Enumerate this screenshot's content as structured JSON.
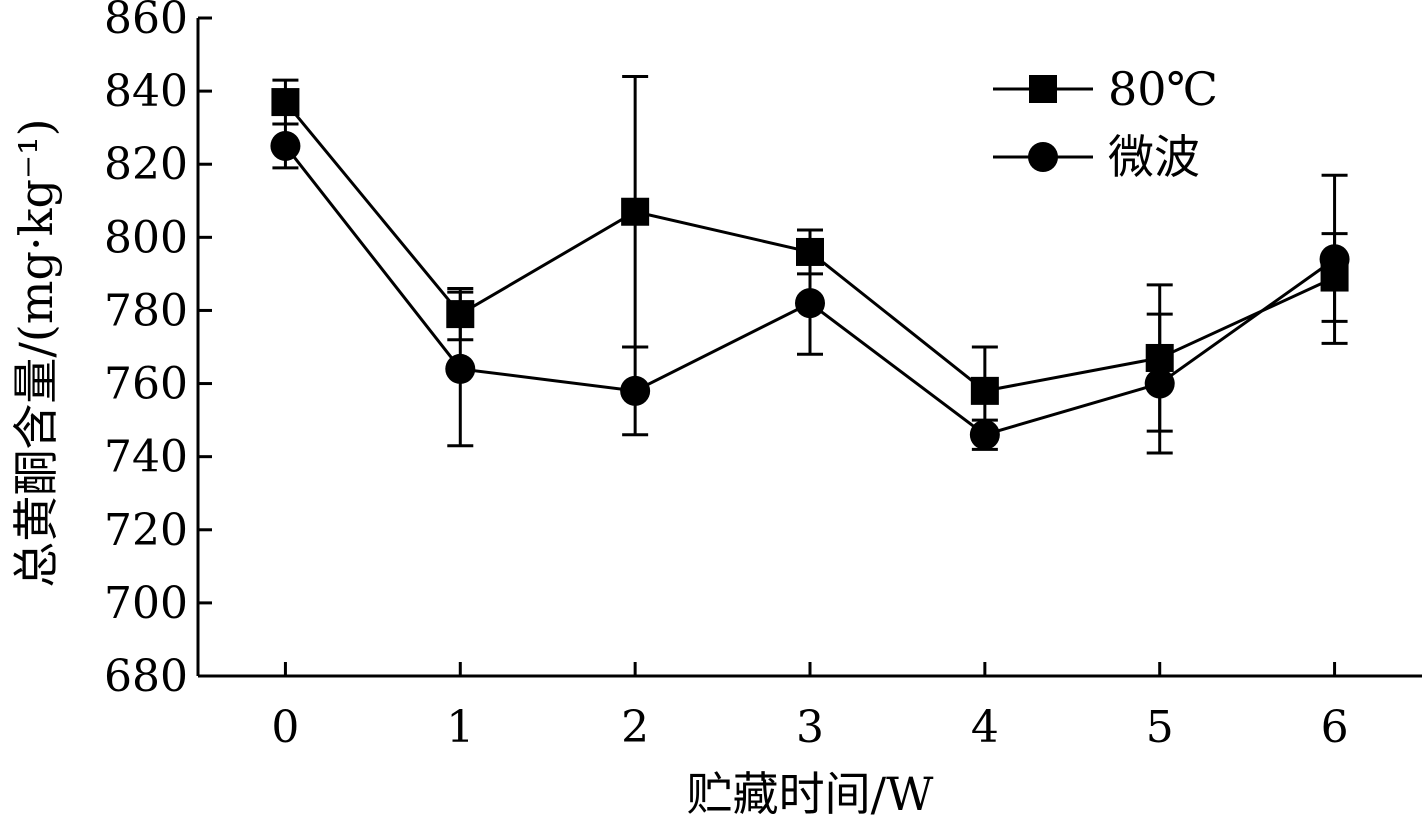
{
  "chart_data": {
    "type": "line",
    "title": "",
    "xlabel": "贮藏时间/W",
    "ylabel": "总黄酮含量/(mg·kg⁻¹)",
    "x": [
      0,
      1,
      2,
      3,
      4,
      5,
      6
    ],
    "xlim": [
      -0.5,
      6.5
    ],
    "ylim": [
      680,
      860
    ],
    "yticks": [
      680,
      700,
      720,
      740,
      760,
      780,
      800,
      820,
      840,
      860
    ],
    "grid": false,
    "legend_position": "top-right",
    "series": [
      {
        "name": "80℃",
        "marker": "square",
        "color": "#000000",
        "values": [
          837,
          779,
          807,
          796,
          758,
          767,
          789
        ],
        "error": [
          6,
          7,
          37,
          6,
          12,
          20,
          12
        ]
      },
      {
        "name": "微波",
        "marker": "circle",
        "color": "#000000",
        "values": [
          825,
          764,
          758,
          782,
          746,
          760,
          794
        ],
        "error": [
          6,
          21,
          12,
          14,
          4,
          19,
          23
        ]
      }
    ]
  }
}
